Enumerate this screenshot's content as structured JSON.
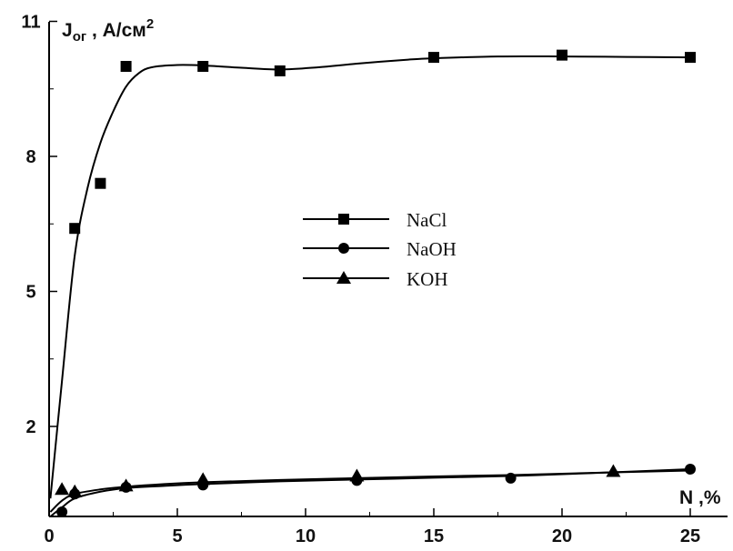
{
  "chart_data": {
    "type": "line",
    "ylabel_main": "J",
    "ylabel_sub": "ог",
    "ylabel_unit": " , А/см",
    "ylabel_sup": "2",
    "xlabel": "N ,%",
    "xlim": [
      0,
      26
    ],
    "ylim": [
      0,
      11
    ],
    "xticks": [
      0,
      5,
      10,
      15,
      20,
      25
    ],
    "yticks": [
      2,
      5,
      8,
      11
    ],
    "grid": false,
    "legend_position": "center",
    "series": [
      {
        "name": "NaCl",
        "marker": "square",
        "points": [
          [
            1.0,
            6.4
          ],
          [
            2.0,
            7.4
          ],
          [
            3.0,
            10.0
          ],
          [
            6.0,
            10.0
          ],
          [
            9.0,
            9.9
          ],
          [
            15.0,
            10.2
          ],
          [
            20.0,
            10.25
          ],
          [
            25.0,
            10.2
          ]
        ],
        "curve": [
          [
            0.05,
            0.4
          ],
          [
            0.5,
            3.0
          ],
          [
            1.0,
            5.8
          ],
          [
            1.5,
            7.3
          ],
          [
            2.0,
            8.3
          ],
          [
            2.5,
            9.0
          ],
          [
            3.0,
            9.55
          ],
          [
            3.5,
            9.85
          ],
          [
            4.0,
            9.98
          ],
          [
            5.0,
            10.03
          ],
          [
            6.0,
            10.02
          ],
          [
            7.5,
            9.97
          ],
          [
            9.0,
            9.93
          ],
          [
            10.5,
            9.98
          ],
          [
            12.0,
            10.06
          ],
          [
            14.0,
            10.15
          ],
          [
            15.0,
            10.18
          ],
          [
            17.5,
            10.22
          ],
          [
            20.0,
            10.22
          ],
          [
            22.5,
            10.21
          ],
          [
            25.0,
            10.2
          ]
        ]
      },
      {
        "name": "NaOH",
        "marker": "circle",
        "points": [
          [
            0.5,
            0.1
          ],
          [
            1.0,
            0.5
          ],
          [
            3.0,
            0.65
          ],
          [
            6.0,
            0.7
          ],
          [
            12.0,
            0.8
          ],
          [
            18.0,
            0.85
          ],
          [
            25.0,
            1.05
          ]
        ],
        "curve": [
          [
            0.05,
            0.0
          ],
          [
            0.5,
            0.2
          ],
          [
            1.0,
            0.4
          ],
          [
            2.0,
            0.55
          ],
          [
            3.0,
            0.63
          ],
          [
            4.5,
            0.68
          ],
          [
            6.0,
            0.72
          ],
          [
            9.0,
            0.78
          ],
          [
            12.0,
            0.82
          ],
          [
            15.0,
            0.86
          ],
          [
            18.0,
            0.9
          ],
          [
            21.0,
            0.96
          ],
          [
            25.0,
            1.05
          ]
        ]
      },
      {
        "name": "KOH",
        "marker": "triangle",
        "points": [
          [
            0.5,
            0.6
          ],
          [
            1.0,
            0.55
          ],
          [
            3.0,
            0.68
          ],
          [
            6.0,
            0.82
          ],
          [
            12.0,
            0.9
          ],
          [
            22.0,
            1.0
          ]
        ],
        "curve": [
          [
            0.05,
            0.1
          ],
          [
            0.5,
            0.35
          ],
          [
            1.0,
            0.5
          ],
          [
            2.0,
            0.6
          ],
          [
            3.0,
            0.66
          ],
          [
            4.5,
            0.72
          ],
          [
            6.0,
            0.76
          ],
          [
            9.0,
            0.81
          ],
          [
            12.0,
            0.85
          ],
          [
            15.0,
            0.89
          ],
          [
            18.0,
            0.92
          ],
          [
            22.0,
            0.98
          ],
          [
            25.0,
            1.02
          ]
        ]
      }
    ]
  }
}
